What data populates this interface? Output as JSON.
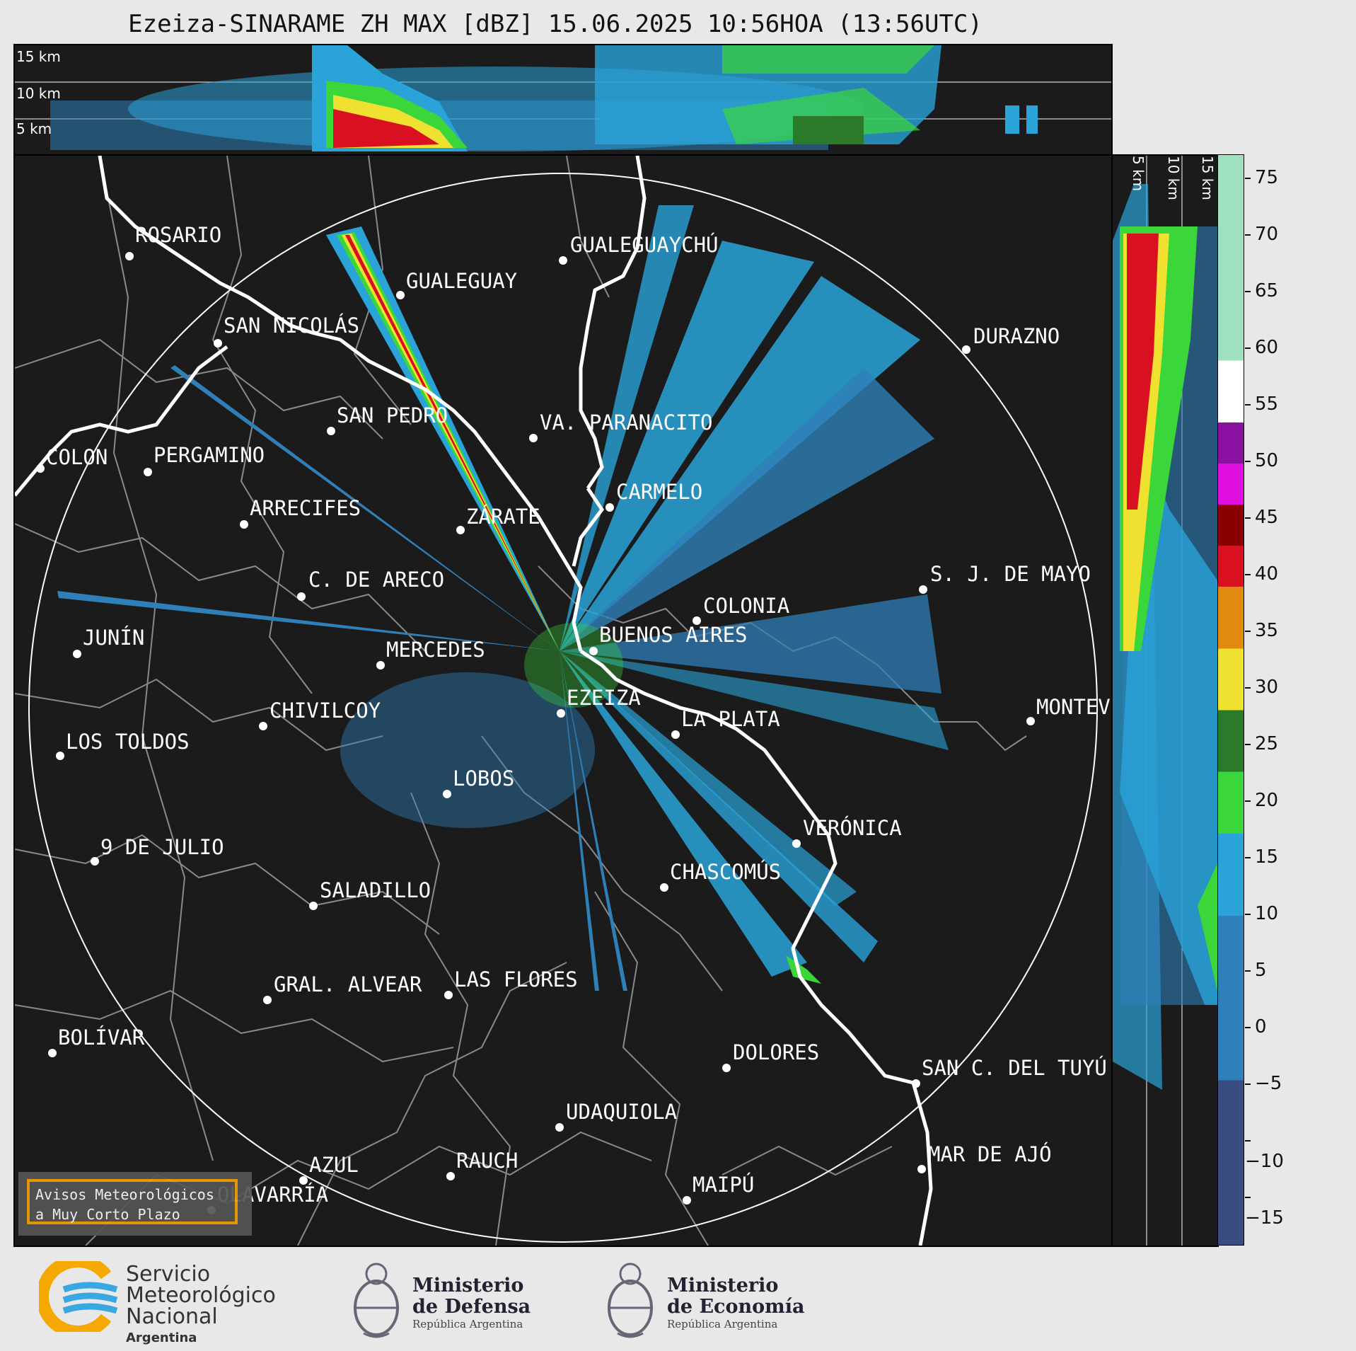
{
  "title": "Ezeiza-SINARAME ZH MAX [dBZ] 15.06.2025 10:56HOA (13:56UTC)",
  "top_panel": {
    "altitude_labels": [
      "15 km",
      "10 km",
      "5 km"
    ]
  },
  "side_panel": {
    "altitude_labels": [
      "5 km",
      "10 km",
      "15 km"
    ]
  },
  "colorbar": {
    "ticks": [
      "75",
      "70",
      "65",
      "60",
      "55",
      "50",
      "45",
      "40",
      "35",
      "30",
      "25",
      "20",
      "15",
      "10",
      "5",
      "0",
      "−5",
      "−10",
      "−15"
    ],
    "colors": {
      "light_blue": "#29a3d8",
      "mid_blue": "#2f7fb8",
      "dark_blue": "#3a4d80",
      "green": "#3ad63a",
      "dark_green": "#2a7a2a",
      "yellow": "#f0e030",
      "orange": "#e08a10",
      "red": "#d81020",
      "dark_red": "#8a0000",
      "magenta": "#e010e0",
      "purple": "#8a10a0",
      "white": "#ffffff",
      "pale_green": "#9fe0c0"
    }
  },
  "cities": [
    {
      "name": "ROSARIO"
    },
    {
      "name": "GUALEGUAYCHÚ"
    },
    {
      "name": "GUALEGUAY"
    },
    {
      "name": "SAN NICOLÁS"
    },
    {
      "name": "DURAZNO"
    },
    {
      "name": "SAN PEDRO"
    },
    {
      "name": "VA. PARANACITO"
    },
    {
      "name": "COLON"
    },
    {
      "name": "PERGAMINO"
    },
    {
      "name": "CARMELO"
    },
    {
      "name": "ARRECIFES"
    },
    {
      "name": "ZÁRATE"
    },
    {
      "name": "C. DE ARECO"
    },
    {
      "name": "S. J. DE MAYO"
    },
    {
      "name": "COLONIA"
    },
    {
      "name": "JUNÍN"
    },
    {
      "name": "MERCEDES"
    },
    {
      "name": "BUENOS AIRES"
    },
    {
      "name": "EZEIZA"
    },
    {
      "name": "CHIVILCOY"
    },
    {
      "name": "LA PLATA"
    },
    {
      "name": "MONTEVIDEO"
    },
    {
      "name": "LOS TOLDOS"
    },
    {
      "name": "LOBOS"
    },
    {
      "name": "VERÓNICA"
    },
    {
      "name": "9 DE JULIO"
    },
    {
      "name": "CHASCOMÚS"
    },
    {
      "name": "SALADILLO"
    },
    {
      "name": "GRAL. ALVEAR"
    },
    {
      "name": "LAS FLORES"
    },
    {
      "name": "BOLÍVAR"
    },
    {
      "name": "DOLORES"
    },
    {
      "name": "SAN C. DEL TUYÚ"
    },
    {
      "name": "UDAQUIOLA"
    },
    {
      "name": "MAR DE AJÓ"
    },
    {
      "name": "AZUL"
    },
    {
      "name": "RAUCH"
    },
    {
      "name": "OLAVARRÍA"
    },
    {
      "name": "MAIPÚ"
    }
  ],
  "avisos": {
    "line1": "Avisos Meteorológicos",
    "line2": "a Muy Corto Plazo"
  },
  "footer": {
    "smn": {
      "line1": "Servicio",
      "line2": "Meteorológico",
      "line3": "Nacional",
      "line4": "Argentina"
    },
    "defensa": {
      "line1": "Ministerio",
      "line2": "de Defensa",
      "line3": "República Argentina"
    },
    "economia": {
      "line1": "Ministerio",
      "line2": "de Economía",
      "line3": "República Argentina"
    }
  }
}
